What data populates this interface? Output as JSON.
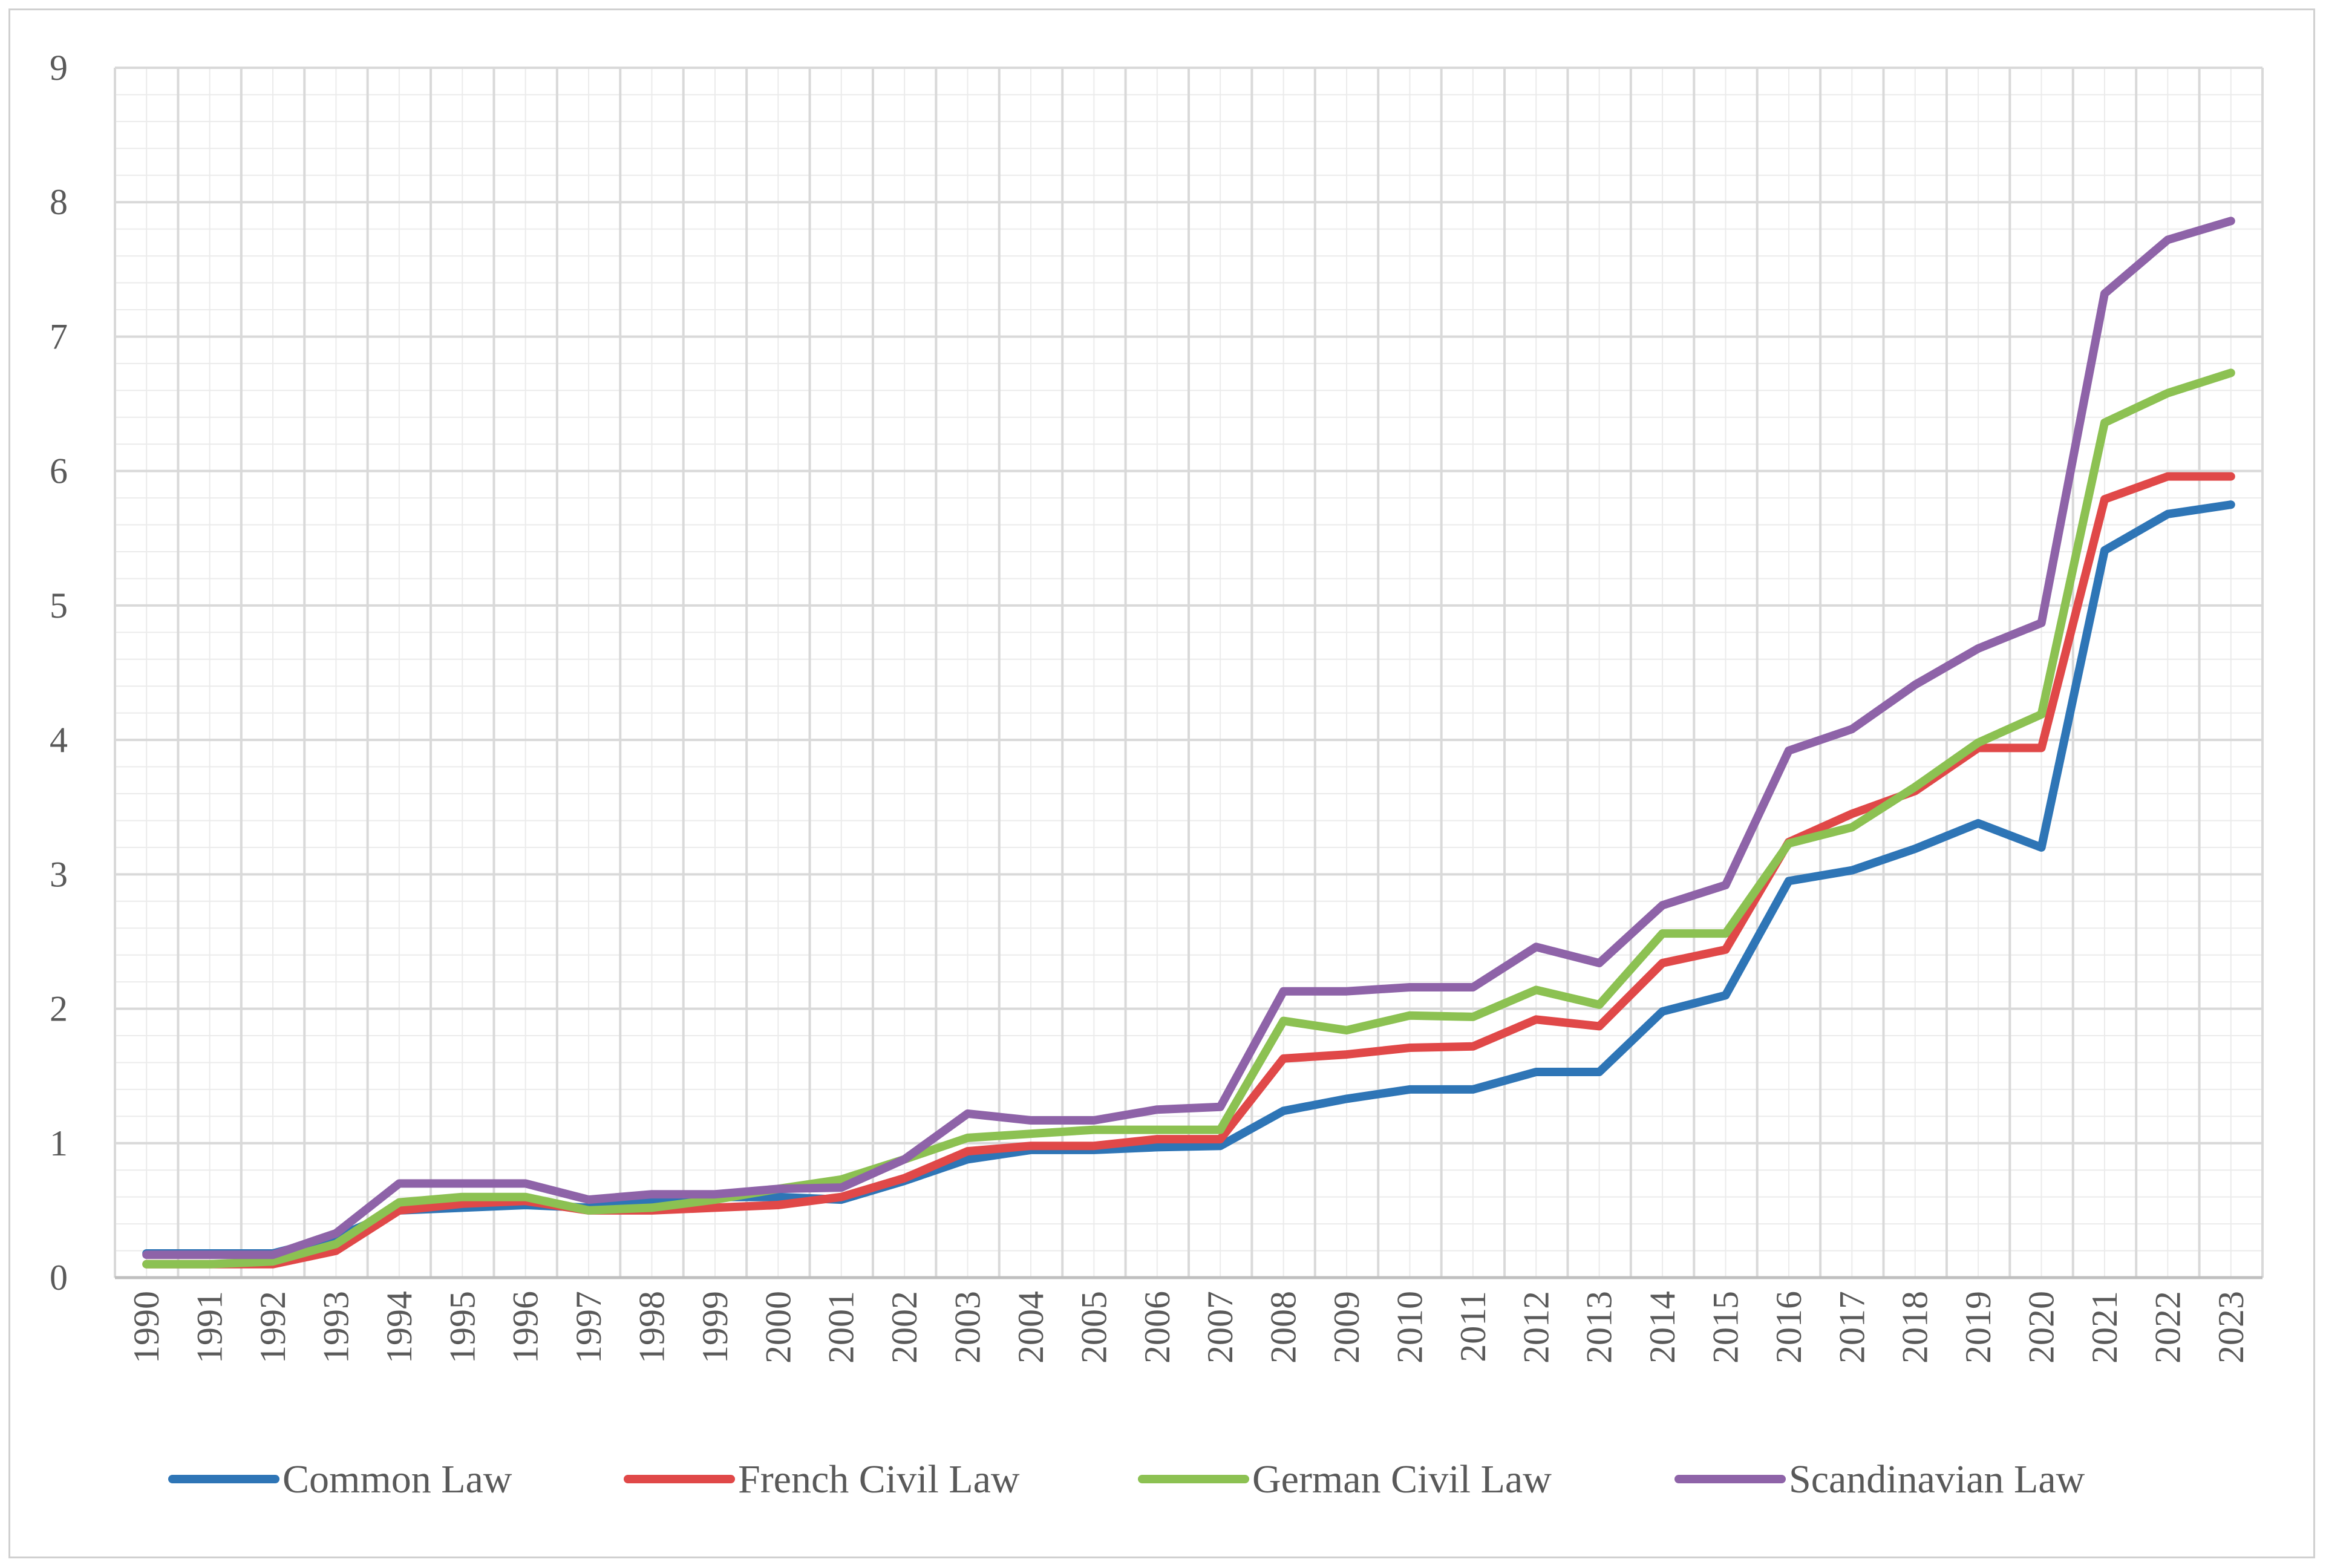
{
  "chart_data": {
    "type": "line",
    "title": "",
    "xlabel": "",
    "ylabel": "",
    "ylim": [
      0,
      9
    ],
    "yticks": [
      "0",
      "1",
      "2",
      "3",
      "4",
      "5",
      "6",
      "7",
      "8",
      "9"
    ],
    "grid": true,
    "minor_grid": true,
    "legend_position": "bottom",
    "categories": [
      "1990",
      "1991",
      "1992",
      "1993",
      "1994",
      "1995",
      "1996",
      "1997",
      "1998",
      "1999",
      "2000",
      "2001",
      "2002",
      "2003",
      "2004",
      "2005",
      "2006",
      "2007",
      "2008",
      "2009",
      "2010",
      "2011",
      "2012",
      "2013",
      "2014",
      "2015",
      "2016",
      "2017",
      "2018",
      "2019",
      "2020",
      "2021",
      "2022",
      "2023"
    ],
    "series": [
      {
        "name": "Common Law",
        "color": "#2e75b6",
        "values": [
          0.18,
          0.18,
          0.18,
          0.3,
          0.5,
          0.52,
          0.54,
          0.52,
          0.58,
          0.6,
          0.6,
          0.58,
          0.72,
          0.88,
          0.95,
          0.95,
          0.97,
          0.98,
          1.24,
          1.33,
          1.4,
          1.4,
          1.53,
          1.53,
          1.98,
          2.1,
          2.95,
          3.03,
          3.19,
          3.38,
          3.2,
          5.41,
          5.68,
          5.75
        ]
      },
      {
        "name": "French Civil Law",
        "color": "#e04848",
        "values": [
          0.1,
          0.1,
          0.1,
          0.2,
          0.5,
          0.55,
          0.57,
          0.5,
          0.5,
          0.52,
          0.54,
          0.6,
          0.74,
          0.94,
          0.98,
          0.98,
          1.03,
          1.03,
          1.63,
          1.66,
          1.71,
          1.72,
          1.92,
          1.87,
          2.34,
          2.44,
          3.24,
          3.45,
          3.62,
          3.94,
          3.94,
          5.79,
          5.96,
          5.96
        ]
      },
      {
        "name": "German Civil Law",
        "color": "#8cc152",
        "values": [
          0.1,
          0.1,
          0.12,
          0.25,
          0.56,
          0.6,
          0.6,
          0.5,
          0.52,
          0.58,
          0.66,
          0.73,
          0.88,
          1.04,
          1.07,
          1.1,
          1.1,
          1.1,
          1.91,
          1.84,
          1.95,
          1.94,
          2.14,
          2.03,
          2.56,
          2.56,
          3.23,
          3.35,
          3.65,
          3.98,
          4.19,
          6.36,
          6.58,
          6.73
        ]
      },
      {
        "name": "Scandinavian Law",
        "color": "#8e63a8",
        "values": [
          0.17,
          0.17,
          0.17,
          0.33,
          0.7,
          0.7,
          0.7,
          0.58,
          0.62,
          0.62,
          0.66,
          0.67,
          0.88,
          1.22,
          1.17,
          1.17,
          1.25,
          1.27,
          2.13,
          2.13,
          2.16,
          2.16,
          2.46,
          2.34,
          2.77,
          2.92,
          3.92,
          4.08,
          4.41,
          4.68,
          4.87,
          7.32,
          7.72,
          7.86
        ]
      }
    ]
  }
}
